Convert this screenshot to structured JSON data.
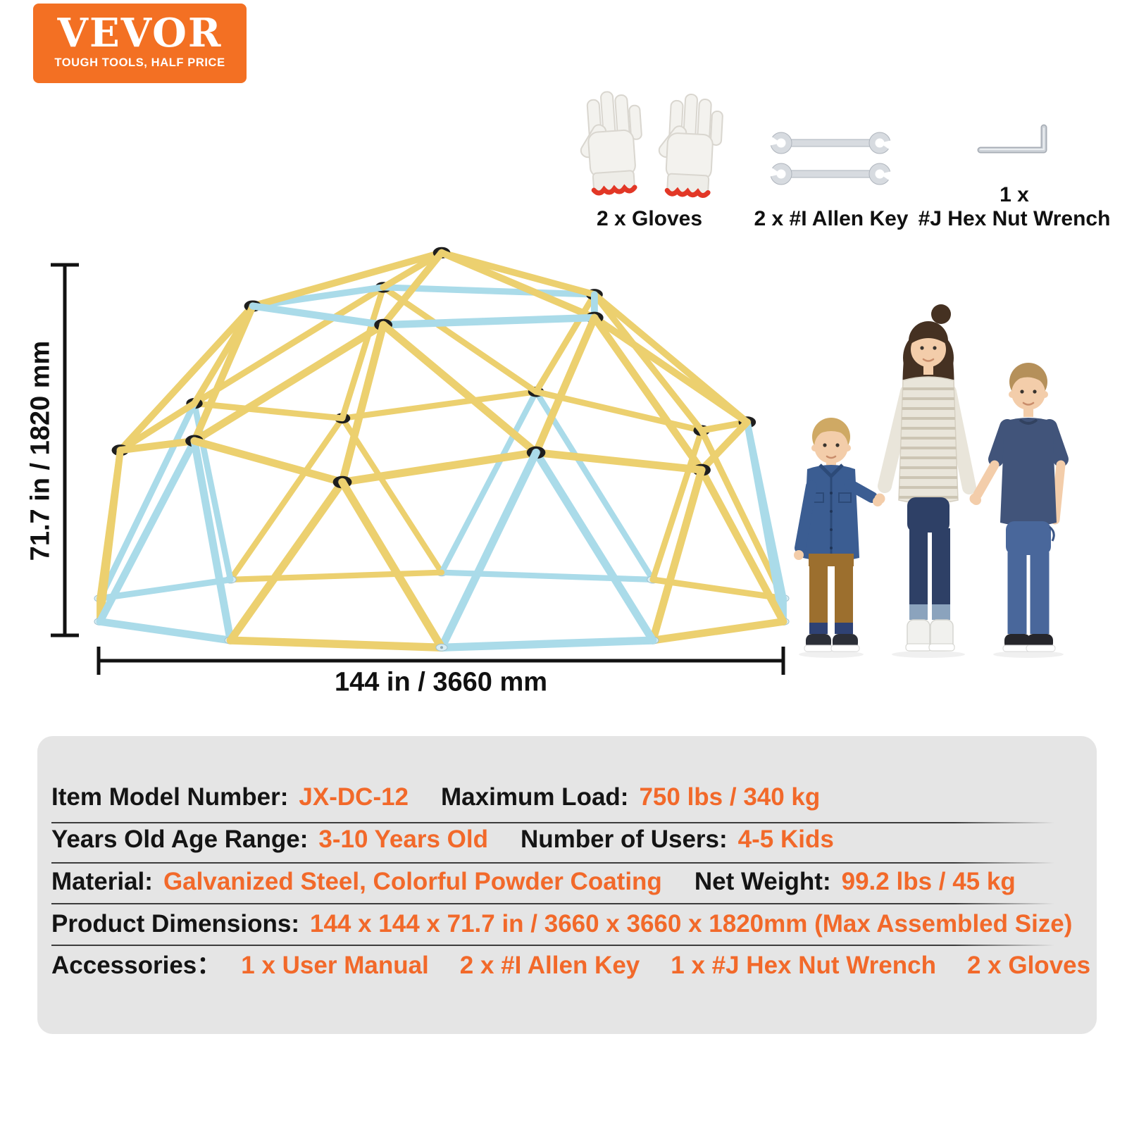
{
  "brand": {
    "name": "VEVOR",
    "tagline": "TOUGH TOOLS, HALF PRICE"
  },
  "included": {
    "gloves": {
      "icon": "gloves-icon",
      "label": "2 x Gloves"
    },
    "allen_key": {
      "icon": "allen-key-icon",
      "label": "2 x #I Allen Key"
    },
    "hex_wrench": {
      "icon": "hex-nut-wrench-icon",
      "count_label": "1 x",
      "label": "#J Hex Nut Wrench"
    }
  },
  "diagram": {
    "height_label": "71.7 in / 1820 mm",
    "width_label": "144 in / 3660 mm"
  },
  "specs": {
    "rows": [
      [
        {
          "label": "Item Model Number:",
          "value": "JX-DC-12"
        },
        {
          "label": "Maximum Load:",
          "value": "750 lbs / 340 kg"
        }
      ],
      [
        {
          "label": "Years Old Age Range:",
          "value": "3-10 Years Old"
        },
        {
          "label": "Number of Users:",
          "value": "4-5 Kids"
        }
      ],
      [
        {
          "label": "Material:",
          "value": "Galvanized Steel, Colorful Powder Coating"
        },
        {
          "label": "Net Weight:",
          "value": "99.2 lbs / 45 kg"
        }
      ],
      [
        {
          "label": "Product Dimensions:",
          "value": "144 x 144 x 71.7 in / 3660 x 3660 x 1820mm (Max Assembled Size)"
        }
      ],
      [
        {
          "label": "Accessories：",
          "value_items": [
            "1 x User Manual",
            "2 x #I Allen Key",
            "1 x #J Hex Nut Wrench",
            "2 x Gloves"
          ]
        }
      ]
    ]
  },
  "colors": {
    "brand_orange": "#f37023",
    "value_orange": "#f2692a",
    "strut_yellow": "#ecd06f",
    "strut_blue": "#aadbe9",
    "hub_black": "#1e1e1e",
    "panel_gray": "#e5e5e5",
    "dimension_black": "#121212"
  }
}
